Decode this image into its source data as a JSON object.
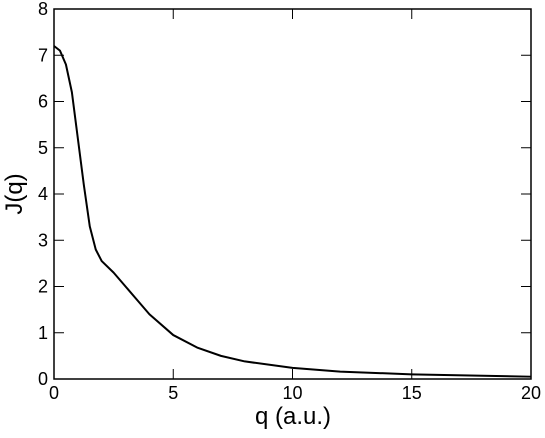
{
  "chart_data": {
    "type": "line",
    "xlabel": "q (a.u.)",
    "ylabel": "J(q)",
    "x": [
      0,
      0.25,
      0.5,
      0.75,
      1.0,
      1.25,
      1.5,
      1.75,
      2.0,
      2.5,
      3,
      3.5,
      4,
      5,
      6,
      7,
      8,
      10,
      12,
      15,
      20
    ],
    "series": [
      {
        "color": "#000000",
        "values": [
          7.2,
          7.1,
          6.8,
          6.2,
          5.2,
          4.2,
          3.3,
          2.8,
          2.55,
          2.3,
          2.0,
          1.7,
          1.4,
          0.95,
          0.68,
          0.5,
          0.38,
          0.24,
          0.16,
          0.1,
          0.05
        ]
      }
    ],
    "xlim": [
      0,
      20
    ],
    "xticks": [
      0,
      5,
      10,
      15,
      20
    ],
    "ylim": [
      0,
      8
    ],
    "yticks": [
      0,
      1,
      2,
      3,
      4,
      5,
      6,
      7,
      8
    ],
    "grid": false
  }
}
